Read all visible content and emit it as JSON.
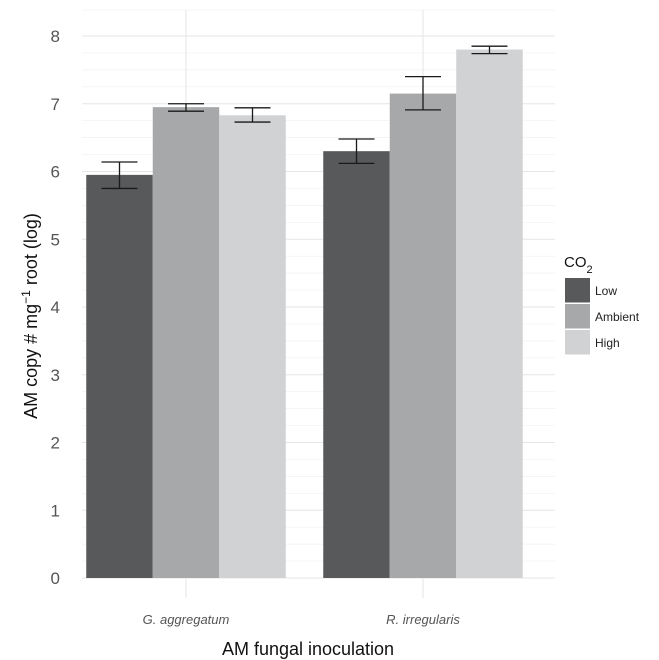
{
  "chart_data": {
    "type": "bar",
    "title": "",
    "xlabel": "AM fungal inoculation",
    "ylabel": {
      "prefix": "AM  copy # mg",
      "superscript": "−1",
      "suffix": " root (log)"
    },
    "categories": [
      "G. aggregatum",
      "R. irregularis"
    ],
    "ylim": [
      0,
      8.2
    ],
    "yticks": [
      "0",
      "1",
      "2",
      "3",
      "4",
      "5",
      "6",
      "7",
      "8"
    ],
    "grid": true,
    "legend_position": "right",
    "legend_title": {
      "main": "CO",
      "subscript": "2"
    },
    "series": [
      {
        "name": "Low",
        "color": "#58595b",
        "values": [
          5.95,
          6.3
        ],
        "error_low": [
          5.75,
          6.12
        ],
        "error_high": [
          6.14,
          6.48
        ]
      },
      {
        "name": "Ambient",
        "color": "#a7a8aa",
        "values": [
          6.95,
          7.15
        ],
        "error_low": [
          6.89,
          6.91
        ],
        "error_high": [
          7.0,
          7.4
        ]
      },
      {
        "name": "High",
        "color": "#d1d2d4",
        "values": [
          6.83,
          7.8
        ],
        "error_low": [
          6.73,
          7.74
        ],
        "error_high": [
          6.94,
          7.85
        ]
      }
    ]
  }
}
